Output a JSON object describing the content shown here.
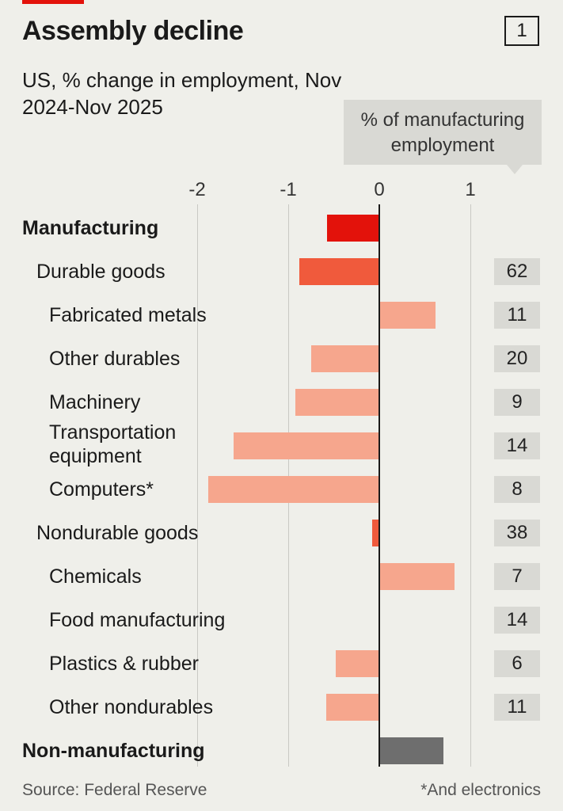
{
  "header": {
    "title": "Assembly decline",
    "figure_number": "1",
    "subtitle": "US, % change in employment, Nov 2024-Nov 2025",
    "share_header": "% of manufacturing employment"
  },
  "colors": {
    "manufacturing": "#e3120b",
    "durable_nondurable": "#f05a3c",
    "subcategory": "#f6a68d",
    "non_manufacturing": "#6e6e6e"
  },
  "chart_data": {
    "type": "bar",
    "orientation": "horizontal",
    "xlim": [
      -2.1,
      1.6
    ],
    "ticks": [
      "-2",
      "-1",
      "0",
      "1"
    ],
    "tick_values": [
      -2,
      -1,
      0,
      1
    ],
    "categories": [
      {
        "label": "Manufacturing",
        "level": 0,
        "value": -0.57,
        "share": null,
        "color_key": "manufacturing"
      },
      {
        "label": "Durable goods",
        "level": 1,
        "value": -0.88,
        "share": "62",
        "color_key": "durable_nondurable"
      },
      {
        "label": "Fabricated metals",
        "level": 2,
        "value": 0.62,
        "share": "11",
        "color_key": "subcategory"
      },
      {
        "label": "Other durables",
        "level": 2,
        "value": -0.75,
        "share": "20",
        "color_key": "subcategory"
      },
      {
        "label": "Machinery",
        "level": 2,
        "value": -0.92,
        "share": "9",
        "color_key": "subcategory"
      },
      {
        "label": "Transportation equipment",
        "level": 2,
        "value": -1.6,
        "share": "14",
        "color_key": "subcategory"
      },
      {
        "label": "Computers*",
        "level": 2,
        "value": -1.88,
        "share": "8",
        "color_key": "subcategory"
      },
      {
        "label": "Nondurable goods",
        "level": 1,
        "value": -0.08,
        "share": "38",
        "color_key": "durable_nondurable"
      },
      {
        "label": "Chemicals",
        "level": 2,
        "value": 0.83,
        "share": "7",
        "color_key": "subcategory"
      },
      {
        "label": "Food manufacturing",
        "level": 2,
        "value": 0.0,
        "share": "14",
        "color_key": "subcategory"
      },
      {
        "label": "Plastics & rubber",
        "level": 2,
        "value": -0.48,
        "share": "6",
        "color_key": "subcategory"
      },
      {
        "label": "Other nondurables",
        "level": 2,
        "value": -0.58,
        "share": "11",
        "color_key": "subcategory"
      },
      {
        "label": "Non-manufacturing",
        "level": 0,
        "value": 0.7,
        "share": null,
        "color_key": "non_manufacturing"
      }
    ]
  },
  "footer": {
    "source": "Source: Federal Reserve",
    "footnote": "*And electronics"
  }
}
